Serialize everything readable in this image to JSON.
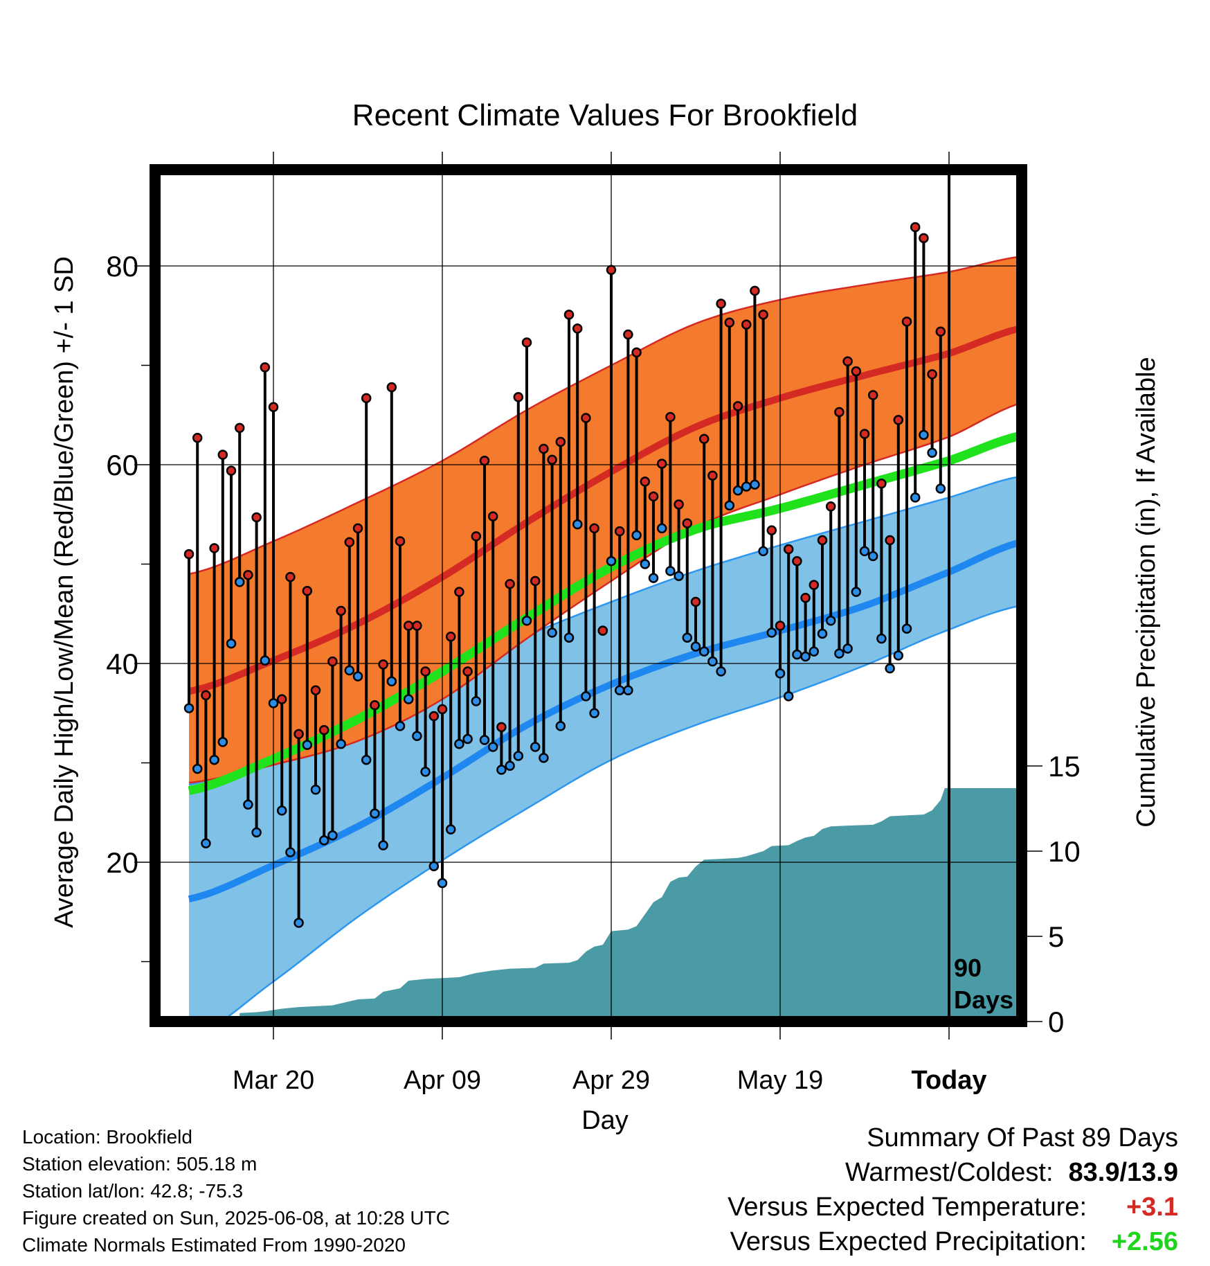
{
  "title": "Recent Climate Values For Brookfield",
  "y_axis_left_title": "Average Daily High/Low/Mean (Red/Blue/Green) +/- 1 SD",
  "y_axis_right_title": "Cumulative Precipitation (in), If Available",
  "x_axis_title": "Day",
  "days_marker": {
    "line1": "90",
    "line2": "Days"
  },
  "colors": {
    "high_band": "#f47a2e",
    "high_line": "#d42a23",
    "high_edge": "#d42a23",
    "low_band": "#80c1e7",
    "low_line": "#1e88f0",
    "low_edge": "#2d96ee",
    "mean_line": "#1fe21d",
    "precip": "#4a9ba5",
    "high_dot": "#d42a23",
    "low_dot": "#2c8ee6",
    "temp_anomaly": "#d42a23",
    "precip_anomaly": "#1fd41d"
  },
  "info": {
    "location": "Location: Brookfield",
    "elevation": "Station elevation: 505.18 m",
    "latlon": "Station lat/lon: 42.8; -75.3",
    "created": "Figure created on Sun, 2025-06-08, at 10:28 UTC",
    "normals": "Climate Normals Estimated From 1990-2020"
  },
  "summary": {
    "heading": "Summary Of Past 89 Days",
    "warmest_coldest_label": "Warmest/Coldest:",
    "warmest_coldest_value": "83.9/13.9",
    "temp_label": "Versus Expected Temperature:",
    "temp_value": "+3.1",
    "precip_label": "Versus Expected Precipitation:",
    "precip_value": "+2.56"
  },
  "chart_data": {
    "type": "line",
    "x_unit": "days relative to today",
    "xlim": [
      -90,
      9
    ],
    "ylim_left": [
      1.5,
      89
    ],
    "ylim_right": [
      0,
      25.5
    ],
    "x_ticks": [
      {
        "x": -80,
        "label": "Mar 20"
      },
      {
        "x": -60,
        "label": "Apr 09"
      },
      {
        "x": -40,
        "label": "Apr 29"
      },
      {
        "x": -20,
        "label": "May 19"
      },
      {
        "x": 0,
        "label": "Today"
      }
    ],
    "y_ticks_left": [
      {
        "y": 20,
        "label": "20"
      },
      {
        "y": 40,
        "label": "40"
      },
      {
        "y": 60,
        "label": "60"
      },
      {
        "y": 80,
        "label": "80"
      }
    ],
    "y_minor_left": [
      10,
      30,
      50,
      70
    ],
    "y_ticks_right": [
      {
        "y": 0,
        "label": "0"
      },
      {
        "y": 5,
        "label": "5"
      },
      {
        "y": 10,
        "label": "10"
      },
      {
        "y": 15,
        "label": "15"
      }
    ],
    "normals": {
      "x": [
        -90,
        -80,
        -70,
        -60,
        -50,
        -40,
        -30,
        -20,
        -10,
        0,
        9
      ],
      "high_mean": [
        37.2,
        40.3,
        44.0,
        48.7,
        54.2,
        59.3,
        63.8,
        66.7,
        69.0,
        71.2,
        73.8
      ],
      "high_plus_sd": [
        49.0,
        52.3,
        56.2,
        60.4,
        65.5,
        70.0,
        74.2,
        76.6,
        78.1,
        79.4,
        81.0
      ],
      "high_minus_sd": [
        28.0,
        29.8,
        32.2,
        36.4,
        42.5,
        48.3,
        53.7,
        57.0,
        60.0,
        62.8,
        66.3
      ],
      "mean": [
        27.2,
        30.4,
        34.4,
        39.2,
        44.6,
        49.7,
        53.5,
        55.6,
        58.0,
        60.4,
        63.0
      ],
      "low_mean": [
        16.3,
        19.7,
        23.6,
        28.5,
        33.8,
        37.9,
        41.0,
        43.3,
        45.8,
        49.2,
        52.3
      ],
      "low_plus_sd": [
        27.8,
        31.0,
        34.6,
        38.9,
        42.8,
        46.2,
        49.3,
        51.9,
        54.3,
        56.7,
        58.9
      ],
      "low_minus_sd": [
        2.2,
        8.0,
        14.5,
        20.2,
        25.4,
        30.3,
        33.8,
        36.6,
        39.8,
        43.4,
        45.9
      ]
    },
    "daily": {
      "x_start": -90,
      "high": [
        51.0,
        62.7,
        36.8,
        51.6,
        61.0,
        59.4,
        63.7,
        48.9,
        54.7,
        69.8,
        65.8,
        36.4,
        48.7,
        32.9,
        47.3,
        37.3,
        33.3,
        40.2,
        45.3,
        52.2,
        53.6,
        66.7,
        35.8,
        39.9,
        67.8,
        52.3,
        43.8,
        43.8,
        39.2,
        34.7,
        35.4,
        42.7,
        47.2,
        39.2,
        52.8,
        60.4,
        54.8,
        33.6,
        48.0,
        66.8,
        72.3,
        48.3,
        61.6,
        60.5,
        62.3,
        75.1,
        73.7,
        64.7,
        53.6,
        43.3,
        79.6,
        53.3,
        73.1,
        71.3,
        58.3,
        56.8,
        60.1,
        64.8,
        56.0,
        54.1,
        46.2,
        62.6,
        58.9,
        76.2,
        74.3,
        65.9,
        74.1,
        77.5,
        75.1,
        53.4,
        43.8,
        51.5,
        50.3,
        46.6,
        47.9,
        52.4,
        55.8,
        65.3,
        70.4,
        69.4,
        63.1,
        67.0,
        58.1,
        52.4,
        64.5,
        74.4,
        83.9,
        82.8,
        69.1,
        73.4
      ],
      "low": [
        35.5,
        29.4,
        21.9,
        30.3,
        32.1,
        42.0,
        48.2,
        25.8,
        23.0,
        40.3,
        36.0,
        25.2,
        21.0,
        13.9,
        31.8,
        27.3,
        22.2,
        22.7,
        31.9,
        39.3,
        38.7,
        30.3,
        24.9,
        21.7,
        38.2,
        33.7,
        36.4,
        32.7,
        29.1,
        19.6,
        17.9,
        23.3,
        31.9,
        32.4,
        36.2,
        32.3,
        31.6,
        29.3,
        29.7,
        30.7,
        44.3,
        31.6,
        30.5,
        43.1,
        33.7,
        42.6,
        54.0,
        36.7,
        35.0,
        43.3,
        50.3,
        37.3,
        37.3,
        52.9,
        50.0,
        48.6,
        53.6,
        49.3,
        48.8,
        42.6,
        41.7,
        41.2,
        40.2,
        39.2,
        55.9,
        57.4,
        57.8,
        58.0,
        51.3,
        43.1,
        39.0,
        36.7,
        40.9,
        40.7,
        41.2,
        43.0,
        44.3,
        41.0,
        41.5,
        47.2,
        51.3,
        50.8,
        42.5,
        39.5,
        40.8,
        43.5,
        56.7,
        63.0,
        61.2,
        57.6
      ]
    },
    "precip_cumulative": {
      "points": [
        [
          -84,
          0.0
        ],
        [
          -84,
          0.5
        ],
        [
          -82,
          0.55
        ],
        [
          -81,
          0.6
        ],
        [
          -79,
          0.75
        ],
        [
          -77,
          0.85
        ],
        [
          -73,
          0.95
        ],
        [
          -70,
          1.3
        ],
        [
          -68,
          1.35
        ],
        [
          -67,
          1.75
        ],
        [
          -65,
          1.95
        ],
        [
          -64,
          2.4
        ],
        [
          -62,
          2.5
        ],
        [
          -58,
          2.6
        ],
        [
          -56,
          2.85
        ],
        [
          -54,
          3.0
        ],
        [
          -52,
          3.1
        ],
        [
          -49,
          3.15
        ],
        [
          -48,
          3.4
        ],
        [
          -45,
          3.45
        ],
        [
          -44,
          3.6
        ],
        [
          -43,
          4.1
        ],
        [
          -42,
          4.4
        ],
        [
          -41,
          4.5
        ],
        [
          -40,
          5.3
        ],
        [
          -38,
          5.4
        ],
        [
          -37,
          5.6
        ],
        [
          -36,
          6.3
        ],
        [
          -35,
          7.0
        ],
        [
          -34,
          7.3
        ],
        [
          -33,
          8.2
        ],
        [
          -32,
          8.45
        ],
        [
          -31,
          8.5
        ],
        [
          -30,
          9.1
        ],
        [
          -29,
          9.5
        ],
        [
          -27,
          9.55
        ],
        [
          -25,
          9.6
        ],
        [
          -24,
          9.7
        ],
        [
          -22,
          10.0
        ],
        [
          -21,
          10.3
        ],
        [
          -19,
          10.35
        ],
        [
          -18,
          10.6
        ],
        [
          -17,
          10.8
        ],
        [
          -16,
          10.9
        ],
        [
          -15,
          11.3
        ],
        [
          -14,
          11.45
        ],
        [
          -12,
          11.5
        ],
        [
          -9,
          11.55
        ],
        [
          -8,
          11.75
        ],
        [
          -7,
          12.05
        ],
        [
          -5,
          12.1
        ],
        [
          -3,
          12.15
        ],
        [
          -2,
          12.4
        ],
        [
          -1,
          13.0
        ],
        [
          -0.5,
          13.7
        ],
        [
          9,
          13.7
        ],
        [
          9,
          0.0
        ]
      ]
    }
  }
}
